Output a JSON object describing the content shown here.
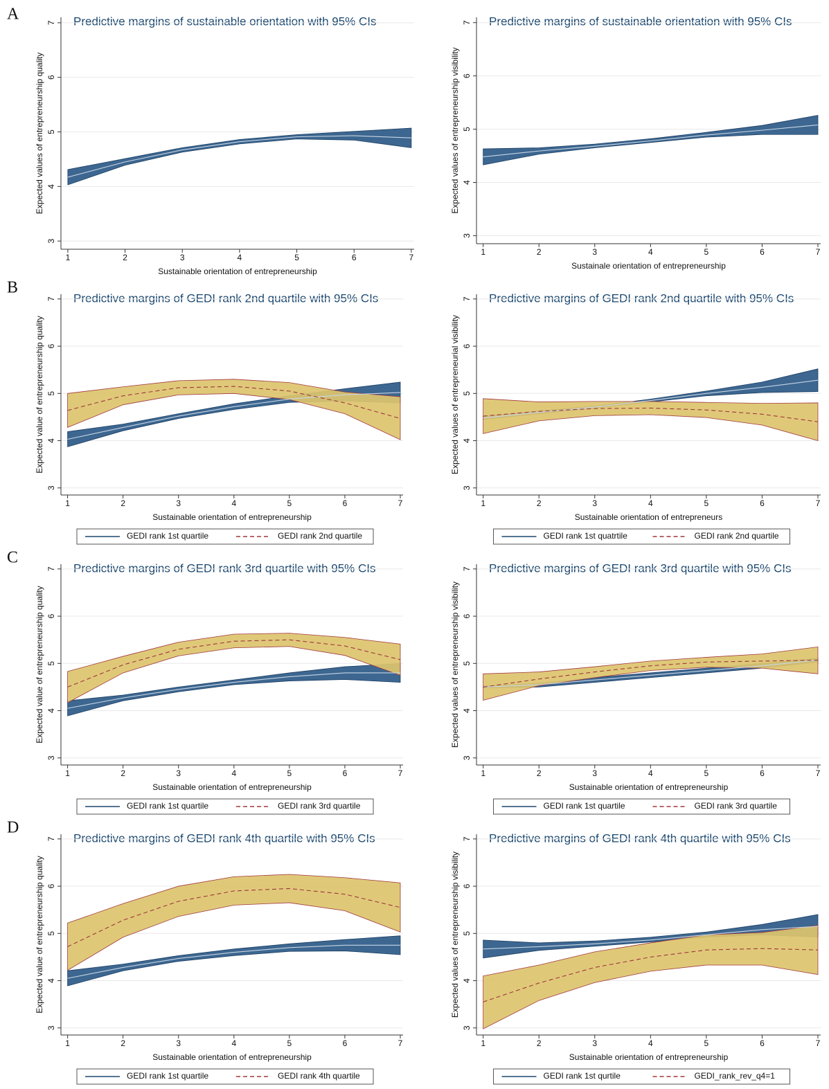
{
  "panel_labels": [
    "A",
    "B",
    "C",
    "D"
  ],
  "chart_data": [
    {
      "type": "line",
      "title": "Predictive margins of sustainable orientation with 95% CIs",
      "xlabel": "Sustainable orientation of entrepreneurship",
      "ylabel": "Expected values of entrepreneurship quality",
      "x": [
        1,
        2,
        3,
        4,
        5,
        6,
        7
      ],
      "xlim": [
        0.88,
        7.05
      ],
      "xticks": [
        1,
        2,
        3,
        4,
        5,
        6,
        7
      ],
      "ylim": [
        2.85,
        7.1
      ],
      "yticks": [
        3,
        4,
        5,
        6,
        7
      ],
      "grid": true,
      "series": [
        {
          "color": "#1a3d63",
          "band_color": "#2d5a87",
          "linestyle": "solid",
          "values": [
            4.17,
            4.45,
            4.67,
            4.82,
            4.91,
            4.93,
            4.89
          ],
          "lower": [
            4.03,
            4.39,
            4.63,
            4.78,
            4.87,
            4.85,
            4.71
          ],
          "upper": [
            4.31,
            4.51,
            4.71,
            4.86,
            4.95,
            5.01,
            5.07
          ]
        }
      ]
    },
    {
      "type": "line",
      "title": "Predictive margins of sustainable orientation with 95% CIs",
      "xlabel": "Sustainale orientation of entrepreneurship",
      "ylabel": "Expected values of entrepreneurship visibility",
      "x": [
        1,
        2,
        3,
        4,
        5,
        6,
        7
      ],
      "xlim": [
        0.88,
        7.05
      ],
      "xticks": [
        1,
        2,
        3,
        4,
        5,
        6,
        7
      ],
      "ylim": [
        2.85,
        7.1
      ],
      "yticks": [
        3,
        4,
        5,
        6,
        7
      ],
      "grid": true,
      "series": [
        {
          "color": "#1a3d63",
          "band_color": "#2d5a87",
          "linestyle": "solid",
          "values": [
            4.48,
            4.59,
            4.68,
            4.78,
            4.89,
            4.98,
            5.08
          ],
          "lower": [
            4.33,
            4.53,
            4.65,
            4.75,
            4.85,
            4.9,
            4.9
          ],
          "upper": [
            4.63,
            4.65,
            4.72,
            4.82,
            4.94,
            5.07,
            5.26
          ]
        }
      ]
    },
    {
      "type": "line",
      "title": "Predictive margins of GEDI rank 2nd quartile with 95% CIs",
      "xlabel": "Sustainable orientation of entrepreneurship",
      "ylabel": "Expected value of entrepreneurship quality",
      "x": [
        1,
        2,
        3,
        4,
        5,
        6,
        7
      ],
      "xlim": [
        0.88,
        7.05
      ],
      "xticks": [
        1,
        2,
        3,
        4,
        5,
        6,
        7
      ],
      "ylim": [
        2.85,
        7.1
      ],
      "yticks": [
        3,
        4,
        5,
        6,
        7
      ],
      "grid": true,
      "series": [
        {
          "name": "GEDI rank 1st quartile",
          "color": "#1a3d63",
          "band_color": "#2d5a87",
          "linestyle": "solid",
          "values": [
            4.03,
            4.28,
            4.52,
            4.72,
            4.88,
            4.97,
            5.02
          ],
          "lower": [
            3.87,
            4.21,
            4.47,
            4.66,
            4.81,
            4.84,
            4.8
          ],
          "upper": [
            4.19,
            4.35,
            4.57,
            4.78,
            4.95,
            5.1,
            5.24
          ]
        },
        {
          "name": "GEDI rank 2nd quartile",
          "color": "#a0363c",
          "band_color": "#dcc46e",
          "linestyle": "dashed",
          "values": [
            4.64,
            4.95,
            5.12,
            5.15,
            5.05,
            4.8,
            4.47
          ],
          "lower": [
            4.28,
            4.76,
            4.97,
            5.0,
            4.87,
            4.57,
            4.02
          ],
          "upper": [
            5.0,
            5.14,
            5.27,
            5.3,
            5.23,
            5.03,
            4.93
          ]
        }
      ]
    },
    {
      "type": "line",
      "title": "Predictive margins of GEDI rank 2nd quartile with 95% CIs",
      "xlabel": "Sustainable orientation of entrepreneurs",
      "ylabel": "Expected values of entrepreneurial visibility",
      "x": [
        1,
        2,
        3,
        4,
        5,
        6,
        7
      ],
      "xlim": [
        0.88,
        7.05
      ],
      "xticks": [
        1,
        2,
        3,
        4,
        5,
        6,
        7
      ],
      "ylim": [
        2.85,
        7.1
      ],
      "yticks": [
        3,
        4,
        5,
        6,
        7
      ],
      "grid": true,
      "series": [
        {
          "name": "GEDI rank 1st quatrtile",
          "color": "#1a3d63",
          "band_color": "#2d5a87",
          "linestyle": "solid",
          "values": [
            4.48,
            4.6,
            4.71,
            4.85,
            5.0,
            5.13,
            5.28
          ],
          "lower": [
            4.45,
            4.57,
            4.69,
            4.82,
            4.95,
            5.02,
            5.04
          ],
          "upper": [
            4.52,
            4.63,
            4.73,
            4.88,
            5.05,
            5.24,
            5.52
          ]
        },
        {
          "name": "GEDI rank 2nd quartile",
          "color": "#a0363c",
          "band_color": "#dcc46e",
          "linestyle": "dashed",
          "values": [
            4.52,
            4.62,
            4.68,
            4.69,
            4.65,
            4.56,
            4.4
          ],
          "lower": [
            4.15,
            4.42,
            4.53,
            4.55,
            4.49,
            4.33,
            4.0
          ],
          "upper": [
            4.89,
            4.82,
            4.83,
            4.83,
            4.81,
            4.79,
            4.8
          ]
        }
      ]
    },
    {
      "type": "line",
      "title": "Predictive margins of GEDI rank 3rd quartile with 95% CIs",
      "xlabel": "Sustainable orientation of entrepreneurship",
      "ylabel": "Expected value of entrepreneurship quality",
      "x": [
        1,
        2,
        3,
        4,
        5,
        6,
        7
      ],
      "xlim": [
        0.88,
        7.05
      ],
      "xticks": [
        1,
        2,
        3,
        4,
        5,
        6,
        7
      ],
      "ylim": [
        2.85,
        7.1
      ],
      "yticks": [
        3,
        4,
        5,
        6,
        7
      ],
      "grid": true,
      "series": [
        {
          "name": "GEDI rank 1st quartile",
          "color": "#1a3d63",
          "band_color": "#2d5a87",
          "linestyle": "solid",
          "values": [
            4.05,
            4.27,
            4.45,
            4.6,
            4.72,
            4.8,
            4.8
          ],
          "lower": [
            3.89,
            4.21,
            4.4,
            4.55,
            4.63,
            4.66,
            4.6
          ],
          "upper": [
            4.21,
            4.33,
            4.5,
            4.65,
            4.8,
            4.93,
            5.0
          ]
        },
        {
          "name": "GEDI rank 3rd quartile",
          "color": "#a0363c",
          "band_color": "#dcc46e",
          "linestyle": "dashed",
          "values": [
            4.5,
            4.97,
            5.3,
            5.47,
            5.5,
            5.37,
            5.08
          ],
          "lower": [
            4.17,
            4.8,
            5.16,
            5.33,
            5.36,
            5.17,
            4.75
          ],
          "upper": [
            4.83,
            5.15,
            5.45,
            5.62,
            5.64,
            5.55,
            5.41
          ]
        }
      ]
    },
    {
      "type": "line",
      "title": "Predictive margins of GEDI rank 3rd quartile with 95% CIs",
      "xlabel": "Sustainable orientation of entrepreneurship",
      "ylabel": "Expected values of entrepreneurship visibility",
      "x": [
        1,
        2,
        3,
        4,
        5,
        6,
        7
      ],
      "xlim": [
        0.88,
        7.05
      ],
      "xticks": [
        1,
        2,
        3,
        4,
        5,
        6,
        7
      ],
      "ylim": [
        2.85,
        7.1
      ],
      "yticks": [
        3,
        4,
        5,
        6,
        7
      ],
      "grid": true,
      "series": [
        {
          "name": "GEDI rank 1st quartile",
          "color": "#1a3d63",
          "band_color": "#2d5a87",
          "linestyle": "solid",
          "values": [
            4.5,
            4.55,
            4.65,
            4.75,
            4.85,
            4.95,
            5.07
          ],
          "lower": [
            4.48,
            4.5,
            4.6,
            4.7,
            4.8,
            4.9,
            5.03
          ],
          "upper": [
            4.52,
            4.58,
            4.7,
            4.8,
            4.9,
            5.0,
            5.11
          ]
        },
        {
          "name": "GEDI rank 3rd quartile",
          "color": "#a0363c",
          "band_color": "#dcc46e",
          "linestyle": "dashed",
          "values": [
            4.5,
            4.67,
            4.82,
            4.95,
            5.03,
            5.05,
            5.07
          ],
          "lower": [
            4.22,
            4.53,
            4.7,
            4.85,
            4.92,
            4.9,
            4.78
          ],
          "upper": [
            4.78,
            4.82,
            4.93,
            5.05,
            5.13,
            5.2,
            5.35
          ]
        }
      ]
    },
    {
      "type": "line",
      "title": "Predictive margins of GEDI rank 4th quartile with 95% CIs",
      "xlabel": "Sustainable orientation of entrepreneurship",
      "ylabel": "Expected value of entrepreneurship quality",
      "x": [
        1,
        2,
        3,
        4,
        5,
        6,
        7
      ],
      "xlim": [
        0.88,
        7.05
      ],
      "xticks": [
        1,
        2,
        3,
        4,
        5,
        6,
        7
      ],
      "ylim": [
        2.85,
        7.1
      ],
      "yticks": [
        3,
        4,
        5,
        6,
        7
      ],
      "grid": true,
      "series": [
        {
          "name": "GEDI rank 1st quartile",
          "color": "#1a3d63",
          "band_color": "#2d5a87",
          "linestyle": "solid",
          "values": [
            4.05,
            4.28,
            4.47,
            4.6,
            4.7,
            4.75,
            4.75
          ],
          "lower": [
            3.89,
            4.21,
            4.41,
            4.53,
            4.62,
            4.63,
            4.55
          ],
          "upper": [
            4.21,
            4.35,
            4.53,
            4.67,
            4.78,
            4.87,
            4.95
          ]
        },
        {
          "name": "GEDI rank 4th quartile",
          "color": "#a0363c",
          "band_color": "#dcc46e",
          "linestyle": "dashed",
          "values": [
            4.72,
            5.28,
            5.68,
            5.9,
            5.95,
            5.83,
            5.55
          ],
          "lower": [
            4.22,
            4.92,
            5.36,
            5.6,
            5.65,
            5.48,
            5.03
          ],
          "upper": [
            5.22,
            5.63,
            6.0,
            6.2,
            6.25,
            6.18,
            6.07
          ]
        }
      ]
    },
    {
      "type": "line",
      "title": "Predictive margins of GEDI rank 4th quartile with 95% CIs",
      "xlabel": "Sustainable orientation of entrepreneurship",
      "ylabel": "Expected values of entrepreneurship visibility",
      "x": [
        1,
        2,
        3,
        4,
        5,
        6,
        7
      ],
      "xlim": [
        0.88,
        7.05
      ],
      "xticks": [
        1,
        2,
        3,
        4,
        5,
        6,
        7
      ],
      "ylim": [
        2.85,
        7.1
      ],
      "yticks": [
        3,
        4,
        5,
        6,
        7
      ],
      "grid": true,
      "series": [
        {
          "name": "GEDI rank 1st qurtile",
          "color": "#1a3d63",
          "band_color": "#2d5a87",
          "linestyle": "solid",
          "values": [
            4.67,
            4.72,
            4.78,
            4.86,
            4.97,
            5.08,
            5.15
          ],
          "lower": [
            4.48,
            4.64,
            4.73,
            4.82,
            4.92,
            4.97,
            4.92
          ],
          "upper": [
            4.86,
            4.8,
            4.84,
            4.92,
            5.03,
            5.19,
            5.4
          ]
        },
        {
          "name": "GEDI_rank_rev_q4=1",
          "color": "#a0363c",
          "band_color": "#dcc46e",
          "linestyle": "dashed",
          "values": [
            3.55,
            3.95,
            4.28,
            4.5,
            4.65,
            4.68,
            4.65
          ],
          "lower": [
            2.98,
            3.58,
            3.96,
            4.2,
            4.33,
            4.33,
            4.13
          ],
          "upper": [
            4.1,
            4.33,
            4.61,
            4.8,
            4.97,
            5.02,
            5.17
          ]
        }
      ]
    }
  ]
}
